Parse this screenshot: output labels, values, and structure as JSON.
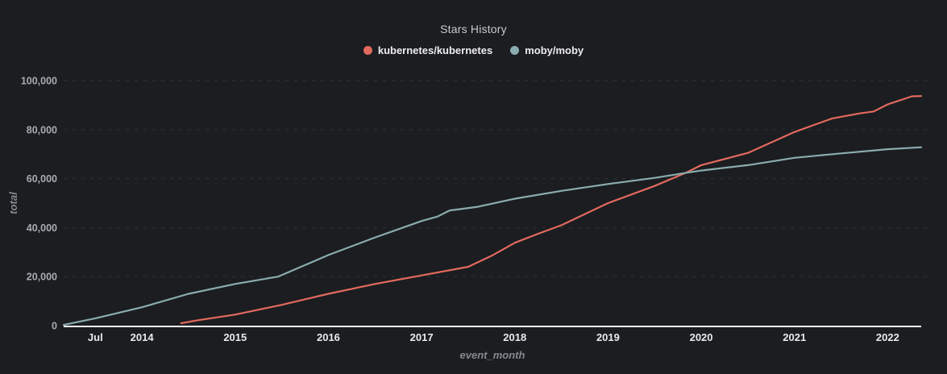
{
  "title": "Stars History",
  "legend": [
    {
      "label": "kubernetes/kubernetes",
      "color": "#e2695e"
    },
    {
      "label": "moby/moby",
      "color": "#8aacae"
    }
  ],
  "colors": {
    "background": "#1b1d20",
    "axis_line": "#f5f6f7",
    "gridline": "#303338",
    "title_text": "#c8cacc",
    "x_tick_text": "#e9eaec",
    "y_tick_text": "#a8abb1",
    "axis_label_text": "#85888d",
    "kubernetes_line": "#e2695e",
    "moby_line": "#8aacae"
  },
  "chart_data": {
    "type": "line",
    "title": "Stars History",
    "xlabel": "event_month",
    "ylabel": "total",
    "x_unit": "decimal_year",
    "xlim": [
      2013.16,
      2022.36
    ],
    "ylim": [
      0,
      100000
    ],
    "grid": "horizontal-dashed",
    "legend_position": "top-center",
    "x_ticks": [
      {
        "label": "Jul",
        "value": 2013.5
      },
      {
        "label": "2014",
        "value": 2014
      },
      {
        "label": "2015",
        "value": 2015
      },
      {
        "label": "2016",
        "value": 2016
      },
      {
        "label": "2017",
        "value": 2017
      },
      {
        "label": "2018",
        "value": 2018
      },
      {
        "label": "2019",
        "value": 2019
      },
      {
        "label": "2020",
        "value": 2020
      },
      {
        "label": "2021",
        "value": 2021
      },
      {
        "label": "2022",
        "value": 2022
      }
    ],
    "y_ticks": [
      {
        "label": "0",
        "value": 0
      },
      {
        "label": "20,000",
        "value": 20000
      },
      {
        "label": "40,000",
        "value": 40000
      },
      {
        "label": "60,000",
        "value": 60000
      },
      {
        "label": "80,000",
        "value": 80000
      },
      {
        "label": "100,000",
        "value": 100000
      }
    ],
    "series": [
      {
        "name": "kubernetes/kubernetes",
        "color": "#e2695e",
        "points": [
          [
            2014.42,
            1000
          ],
          [
            2014.6,
            2200
          ],
          [
            2015.0,
            4500
          ],
          [
            2015.5,
            8500
          ],
          [
            2016.0,
            13000
          ],
          [
            2016.5,
            17000
          ],
          [
            2017.0,
            20500
          ],
          [
            2017.5,
            24000
          ],
          [
            2017.75,
            28500
          ],
          [
            2018.0,
            33800
          ],
          [
            2018.25,
            37500
          ],
          [
            2018.5,
            41000
          ],
          [
            2019.0,
            50000
          ],
          [
            2019.5,
            57000
          ],
          [
            2019.83,
            62300
          ],
          [
            2020.0,
            65500
          ],
          [
            2020.5,
            70500
          ],
          [
            2021.0,
            79000
          ],
          [
            2021.4,
            84500
          ],
          [
            2021.7,
            86600
          ],
          [
            2021.85,
            87400
          ],
          [
            2022.0,
            90300
          ],
          [
            2022.26,
            93600
          ],
          [
            2022.36,
            93700
          ]
        ]
      },
      {
        "name": "moby/moby",
        "color": "#8aacae",
        "points": [
          [
            2013.16,
            300
          ],
          [
            2013.5,
            3000
          ],
          [
            2014.0,
            7500
          ],
          [
            2014.5,
            13000
          ],
          [
            2015.0,
            17000
          ],
          [
            2015.46,
            20000
          ],
          [
            2016.0,
            28800
          ],
          [
            2016.5,
            36000
          ],
          [
            2017.0,
            42700
          ],
          [
            2017.17,
            44500
          ],
          [
            2017.3,
            47000
          ],
          [
            2017.6,
            48500
          ],
          [
            2018.0,
            51800
          ],
          [
            2018.5,
            55000
          ],
          [
            2019.0,
            57800
          ],
          [
            2019.5,
            60300
          ],
          [
            2019.83,
            62300
          ],
          [
            2020.0,
            63300
          ],
          [
            2020.5,
            65500
          ],
          [
            2021.0,
            68500
          ],
          [
            2021.5,
            70300
          ],
          [
            2022.0,
            72000
          ],
          [
            2022.36,
            72800
          ]
        ]
      }
    ]
  }
}
